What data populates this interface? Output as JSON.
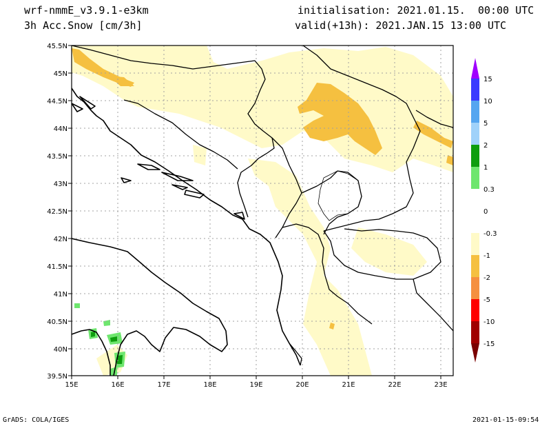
{
  "header": {
    "model": "wrf-nmmE_v3.9.1-e3km",
    "variable": "3h Acc.Snow [cm/3h]",
    "init": "initialisation: 2021.01.15.  00:00 UTC",
    "valid": "valid(+13h): 2021.JAN.15 13:00 UTC"
  },
  "footer": {
    "left": "GrADS: COLA/IGES",
    "right": "2021-01-15-09:54"
  },
  "map": {
    "lon_labels": [
      "15E",
      "16E",
      "17E",
      "18E",
      "19E",
      "20E",
      "21E",
      "22E",
      "23E"
    ],
    "lat_labels": [
      "45.5N",
      "45N",
      "44.5N",
      "44N",
      "43.5N",
      "43N",
      "42.5N",
      "42N",
      "41.5N",
      "41N",
      "40.5N",
      "40N",
      "39.5N"
    ],
    "grid": true
  },
  "colorbar": {
    "labels": [
      "15",
      "10",
      "5",
      "2",
      "1",
      "0.3",
      "0",
      "-0.3",
      "-1",
      "-2",
      "-5",
      "-10",
      "-15"
    ],
    "colors": [
      "#a000ff",
      "#3b3bff",
      "#55a6f0",
      "#a0d2fa",
      "#0e9e0e",
      "#6ee66e",
      "#ffffff",
      "#ffffff",
      "#fffac8",
      "#f5c040",
      "#f59040",
      "#ff0000",
      "#a00000"
    ]
  },
  "chart_data": {
    "type": "heatmap",
    "title": "3h Acc.Snow [cm/3h]",
    "xlim": [
      15,
      23.25
    ],
    "ylim": [
      39.5,
      45.5
    ],
    "levels": [
      -15,
      -10,
      -5,
      -2,
      -1,
      -0.3,
      0,
      0.3,
      1,
      2,
      5,
      10,
      15
    ]
  }
}
